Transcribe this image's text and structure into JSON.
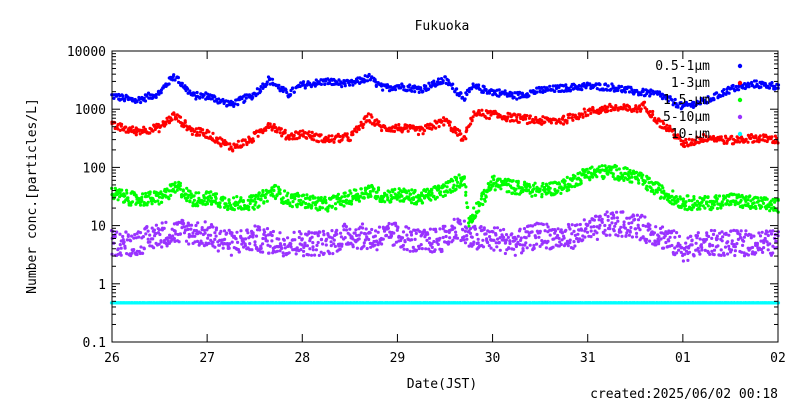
{
  "chart_data": {
    "type": "scatter",
    "title": "Fukuoka",
    "xlabel": "Date(JST)",
    "ylabel": "Number conc.[particles/L]",
    "yscale": "log",
    "ylim": [
      0.1,
      10000
    ],
    "xlim": [
      0,
      7
    ],
    "x_ticks": [
      {
        "x": 0,
        "label": "26"
      },
      {
        "x": 1,
        "label": "27"
      },
      {
        "x": 2,
        "label": "28"
      },
      {
        "x": 3,
        "label": "29"
      },
      {
        "x": 4,
        "label": "30"
      },
      {
        "x": 5,
        "label": "31"
      },
      {
        "x": 6,
        "label": "01"
      },
      {
        "x": 7,
        "label": "02"
      }
    ],
    "y_ticks": [
      {
        "y": 0.1,
        "label": "0.1"
      },
      {
        "y": 1,
        "label": "1"
      },
      {
        "y": 10,
        "label": "10"
      },
      {
        "y": 100,
        "label": "100"
      },
      {
        "y": 1000,
        "label": "1000"
      },
      {
        "y": 10000,
        "label": "10000"
      }
    ],
    "legend_position": "top-right",
    "grid": false,
    "series": [
      {
        "name": "0.5-1μm",
        "color": "#0000ff",
        "x": [
          0,
          0.25,
          0.5,
          0.65,
          0.85,
          1.0,
          1.25,
          1.5,
          1.65,
          1.85,
          2.0,
          2.25,
          2.5,
          2.7,
          2.85,
          3.0,
          3.25,
          3.5,
          3.7,
          3.8,
          4.0,
          4.25,
          4.5,
          4.75,
          5.0,
          5.25,
          5.5,
          5.75,
          6.0,
          6.25,
          6.5,
          6.75,
          7.0
        ],
        "values": [
          1700,
          1400,
          1900,
          3800,
          1700,
          1700,
          1200,
          1800,
          3200,
          1800,
          2600,
          3000,
          2700,
          3500,
          2300,
          2500,
          2200,
          3200,
          1600,
          2400,
          2000,
          1700,
          2100,
          2300,
          2500,
          2400,
          2000,
          1800,
          1100,
          1400,
          2200,
          2700,
          2500
        ]
      },
      {
        "name": "1-3μm",
        "color": "#ff0000",
        "x": [
          0,
          0.25,
          0.5,
          0.65,
          0.85,
          1.0,
          1.25,
          1.45,
          1.65,
          1.85,
          2.0,
          2.25,
          2.5,
          2.7,
          2.85,
          3.0,
          3.25,
          3.5,
          3.7,
          3.8,
          4.0,
          4.25,
          4.5,
          4.75,
          5.0,
          5.25,
          5.5,
          5.6,
          5.75,
          5.9,
          6.0,
          6.25,
          6.5,
          6.75,
          7.0
        ],
        "values": [
          520,
          420,
          480,
          780,
          420,
          380,
          220,
          290,
          560,
          340,
          380,
          300,
          330,
          720,
          470,
          480,
          420,
          640,
          300,
          850,
          800,
          700,
          630,
          650,
          900,
          1050,
          1000,
          1150,
          600,
          400,
          250,
          330,
          290,
          320,
          300
        ]
      },
      {
        "name": "1.5-μm",
        "color": "#00ff00",
        "x": [
          0,
          0.25,
          0.5,
          0.7,
          0.85,
          1.0,
          1.25,
          1.5,
          1.7,
          1.85,
          2.0,
          2.25,
          2.5,
          2.7,
          2.85,
          3.0,
          3.25,
          3.5,
          3.7,
          3.75,
          4.0,
          4.25,
          4.5,
          4.75,
          5.0,
          5.25,
          5.5,
          5.75,
          6.0,
          6.25,
          6.5,
          6.75,
          7.0
        ],
        "values": [
          35,
          28,
          30,
          45,
          28,
          30,
          24,
          25,
          40,
          28,
          27,
          23,
          30,
          40,
          32,
          34,
          30,
          42,
          65,
          12,
          55,
          45,
          40,
          48,
          80,
          85,
          70,
          40,
          25,
          24,
          28,
          24,
          22
        ]
      },
      {
        "name": "5-10μm",
        "color": "#9933ff",
        "x": [
          0,
          0.25,
          0.5,
          0.75,
          1.0,
          1.25,
          1.5,
          1.75,
          2.0,
          2.25,
          2.5,
          2.75,
          3.0,
          3.25,
          3.5,
          3.65,
          3.75,
          4.0,
          4.25,
          4.5,
          4.75,
          5.0,
          5.25,
          5.5,
          5.75,
          6.0,
          6.25,
          6.5,
          6.75,
          7.0
        ],
        "values": [
          5,
          5,
          7,
          8,
          7,
          5,
          6,
          5,
          5,
          5,
          7,
          6,
          7,
          5,
          6,
          10,
          6,
          6,
          5,
          7,
          6,
          8,
          11,
          10,
          7,
          4,
          5,
          5,
          5,
          5
        ]
      },
      {
        "name": "10-μm",
        "color": "#00ffff",
        "x": [
          0,
          0.5,
          1.0,
          1.5,
          2.0,
          2.5,
          3.0,
          3.5,
          4.0,
          4.5,
          5.0,
          5.5,
          6.0,
          6.5,
          7.0
        ],
        "values": [
          0.47,
          0.47,
          0.47,
          0.47,
          0.47,
          0.47,
          0.47,
          0.47,
          0.47,
          0.47,
          0.47,
          0.47,
          0.47,
          0.47,
          0.47
        ]
      }
    ],
    "footer_text": "created:2025/06/02 00:18"
  }
}
